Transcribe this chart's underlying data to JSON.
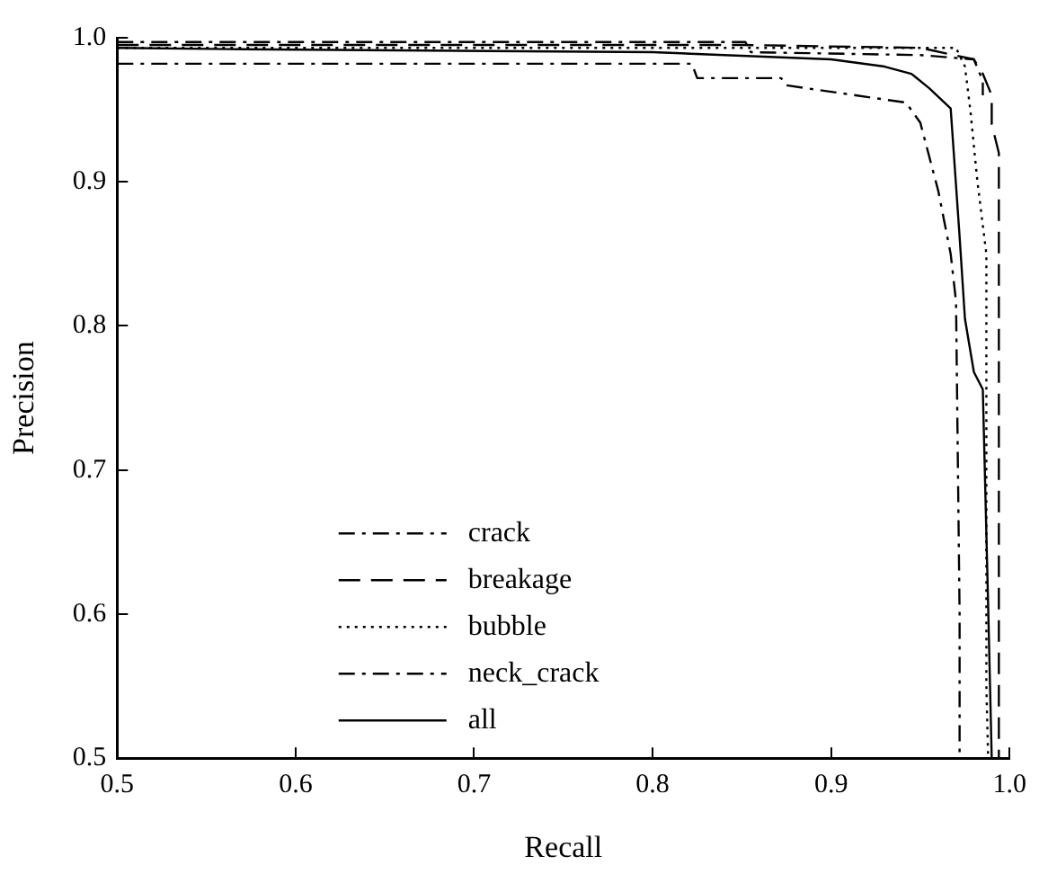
{
  "chart_data": {
    "type": "line",
    "xlabel": "Recall",
    "ylabel": "Precision",
    "xlim": [
      0.5,
      1.0
    ],
    "ylim": [
      0.5,
      1.0
    ],
    "xticks": [
      0.5,
      0.6,
      0.7,
      0.8,
      0.9,
      {
        "value": 1.0,
        "label": "1.0"
      }
    ],
    "yticks": [
      0.5,
      0.6,
      0.7,
      0.8,
      0.9,
      {
        "value": 1.0,
        "label": "1.0"
      }
    ],
    "grid": false,
    "legend": "bottom",
    "marker": "none",
    "series": [
      {
        "name": "crack",
        "color": "#000000",
        "line_style": "dashdot",
        "x": [
          0.5,
          0.57,
          0.822,
          0.825,
          0.872,
          0.875,
          0.942,
          0.95,
          0.96,
          0.967,
          0.97,
          0.972,
          0.972
        ],
        "values": [
          0.982,
          0.982,
          0.982,
          0.972,
          0.972,
          0.967,
          0.955,
          0.941,
          0.894,
          0.85,
          0.817,
          0.6,
          0.5
        ]
      },
      {
        "name": "breakage",
        "color": "#000000",
        "line_style": "dashed",
        "x": [
          0.5,
          0.85,
          0.95,
          0.98,
          0.985,
          0.99,
          0.99,
          0.994,
          0.994
        ],
        "values": [
          0.995,
          0.995,
          0.993,
          0.985,
          0.975,
          0.96,
          0.94,
          0.92,
          0.5
        ]
      },
      {
        "name": "bubble",
        "color": "#000000",
        "line_style": "dotted",
        "x": [
          0.5,
          0.97,
          0.975,
          0.978,
          0.982,
          0.987,
          0.987,
          0.988
        ],
        "values": [
          0.993,
          0.993,
          0.98,
          0.95,
          0.9,
          0.85,
          0.55,
          0.5
        ]
      },
      {
        "name": "neck_crack",
        "color": "#000000",
        "line_style": "dashdot",
        "x": [
          0.5,
          0.852,
          0.855,
          0.95,
          0.98,
          0.985,
          0.985
        ],
        "values": [
          0.997,
          0.997,
          0.99,
          0.988,
          0.985,
          0.97,
          0.96
        ]
      },
      {
        "name": "all",
        "color": "#000000",
        "line_style": "solid",
        "x": [
          0.5,
          0.57,
          0.8,
          0.9,
          0.93,
          0.945,
          0.955,
          0.967,
          0.972,
          0.975,
          0.98,
          0.985,
          0.988,
          0.99
        ],
        "values": [
          0.993,
          0.992,
          0.99,
          0.985,
          0.98,
          0.975,
          0.965,
          0.951,
          0.862,
          0.805,
          0.768,
          0.756,
          0.606,
          0.5
        ]
      }
    ]
  }
}
